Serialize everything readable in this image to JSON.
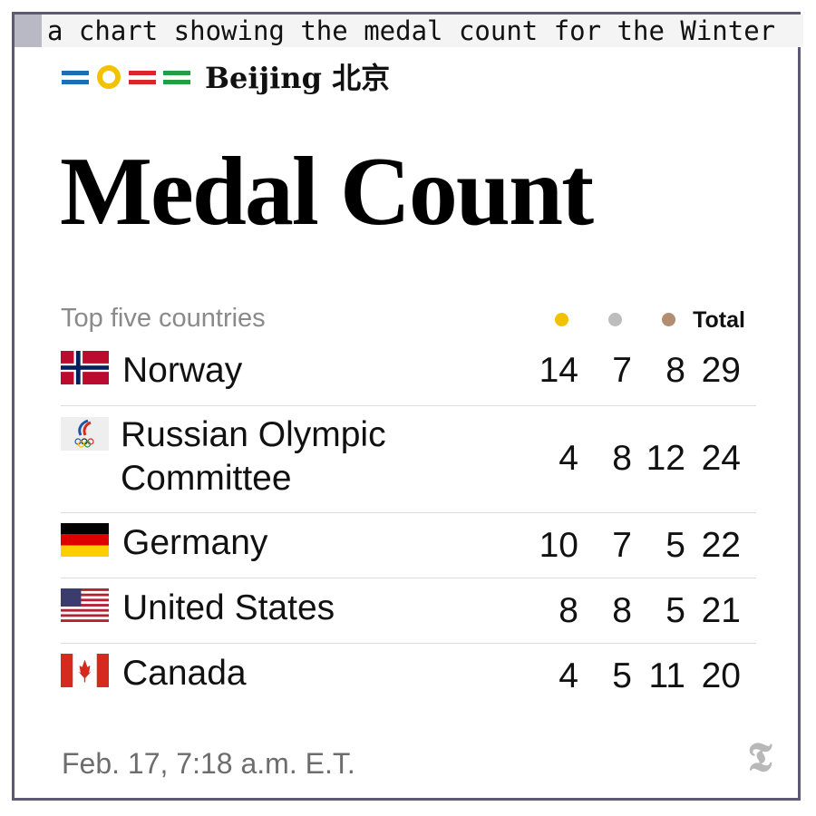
{
  "caption": "a chart showing the medal count for the Winter",
  "brand": {
    "name": "Beijing 北京"
  },
  "title": "Medal Count",
  "table_caption": "Top five countries",
  "columns": {
    "total": "Total",
    "gold_color": "#f2c200",
    "silver_color": "#bdbdbd",
    "bronze_color": "#b38d72"
  },
  "rows": [
    {
      "country": "Norway",
      "gold": "14",
      "silver": "7",
      "bronze": "8",
      "total": "29",
      "flag_icon": "norway-flag"
    },
    {
      "country": "Russian Olympic Committee",
      "gold": "4",
      "silver": "8",
      "bronze": "12",
      "total": "24",
      "flag_icon": "roc-emblem"
    },
    {
      "country": "Germany",
      "gold": "10",
      "silver": "7",
      "bronze": "5",
      "total": "22",
      "flag_icon": "germany-flag"
    },
    {
      "country": "United States",
      "gold": "8",
      "silver": "8",
      "bronze": "5",
      "total": "21",
      "flag_icon": "usa-flag"
    },
    {
      "country": "Canada",
      "gold": "4",
      "silver": "5",
      "bronze": "11",
      "total": "20",
      "flag_icon": "canada-flag"
    }
  ],
  "timestamp": "Feb. 17, 7:18 a.m. E.T.",
  "chart_data": {
    "type": "table",
    "title": "Medal Count",
    "subtitle": "Top five countries",
    "columns": [
      "",
      "",
      "",
      "Total"
    ],
    "series": [
      {
        "name": "",
        "values": [
          14,
          4,
          10,
          8,
          4
        ]
      },
      {
        "name": "",
        "values": [
          7,
          8,
          7,
          8,
          5
        ]
      },
      {
        "name": "",
        "values": [
          8,
          12,
          5,
          5,
          11
        ]
      },
      {
        "name": "Total",
        "values": [
          29,
          24,
          22,
          21,
          20
        ]
      }
    ],
    "categories": [
      "Norway",
      "Russian Olympic Committee",
      "Germany",
      "United States",
      "Canada"
    ]
  }
}
